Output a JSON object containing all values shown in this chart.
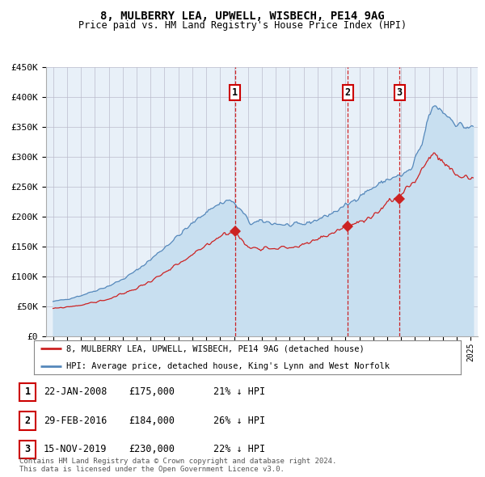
{
  "title": "8, MULBERRY LEA, UPWELL, WISBECH, PE14 9AG",
  "subtitle": "Price paid vs. HM Land Registry's House Price Index (HPI)",
  "ylim": [
    0,
    450000
  ],
  "xlim_start": 1994.5,
  "xlim_end": 2025.5,
  "yticks": [
    0,
    50000,
    100000,
    150000,
    200000,
    250000,
    300000,
    350000,
    400000,
    450000
  ],
  "ytick_labels": [
    "£0",
    "£50K",
    "£100K",
    "£150K",
    "£200K",
    "£250K",
    "£300K",
    "£350K",
    "£400K",
    "£450K"
  ],
  "xticks": [
    1995,
    1996,
    1997,
    1998,
    1999,
    2000,
    2001,
    2002,
    2003,
    2004,
    2005,
    2006,
    2007,
    2008,
    2009,
    2010,
    2011,
    2012,
    2013,
    2014,
    2015,
    2016,
    2017,
    2018,
    2019,
    2020,
    2021,
    2022,
    2023,
    2024,
    2025
  ],
  "hpi_color": "#5588bb",
  "hpi_fill_color": "#c8dff0",
  "property_color": "#cc2222",
  "bg_fill_color": "#e8f0f8",
  "grid_color": "#bbbbcc",
  "sale_dates": [
    2008.06,
    2016.17,
    2019.88
  ],
  "sale_prices": [
    175000,
    184000,
    230000
  ],
  "sale_labels": [
    "1",
    "2",
    "3"
  ],
  "legend_property": "8, MULBERRY LEA, UPWELL, WISBECH, PE14 9AG (detached house)",
  "legend_hpi": "HPI: Average price, detached house, King's Lynn and West Norfolk",
  "table_data": [
    {
      "num": "1",
      "date": "22-JAN-2008",
      "price": "£175,000",
      "pct": "21% ↓ HPI"
    },
    {
      "num": "2",
      "date": "29-FEB-2016",
      "price": "£184,000",
      "pct": "26% ↓ HPI"
    },
    {
      "num": "3",
      "date": "15-NOV-2019",
      "price": "£230,000",
      "pct": "22% ↓ HPI"
    }
  ],
  "footnote": "Contains HM Land Registry data © Crown copyright and database right 2024.\nThis data is licensed under the Open Government Licence v3.0."
}
